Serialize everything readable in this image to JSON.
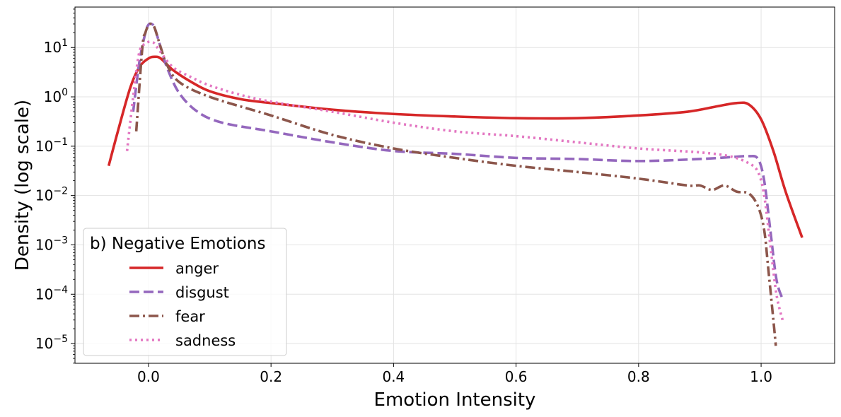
{
  "chart_data": {
    "type": "line",
    "title": "",
    "xlabel": "Emotion Intensity",
    "ylabel": "Density (log scale)",
    "xlim": [
      -0.12,
      1.12
    ],
    "ylim_log10": [
      -5.4,
      1.82
    ],
    "yscale": "log",
    "grid": true,
    "x_ticks": [
      0.0,
      0.2,
      0.4,
      0.6,
      0.8,
      1.0
    ],
    "x_tick_labels": [
      "0.0",
      "0.2",
      "0.4",
      "0.6",
      "0.8",
      "1.0"
    ],
    "y_ticks_log10": [
      -5,
      -4,
      -3,
      -2,
      -1,
      0,
      1
    ],
    "y_tick_labels": [
      {
        "base": "10",
        "exp": "−5"
      },
      {
        "base": "10",
        "exp": "−4"
      },
      {
        "base": "10",
        "exp": "−3"
      },
      {
        "base": "10",
        "exp": "−2"
      },
      {
        "base": "10",
        "exp": "−1"
      },
      {
        "base": "10",
        "exp": "0"
      },
      {
        "base": "10",
        "exp": "1"
      }
    ],
    "legend": {
      "title": "b) Negative Emotions",
      "position": "lower-left"
    },
    "series": [
      {
        "name": "anger",
        "color": "#d62728",
        "style": "solid",
        "x": [
          -0.065,
          -0.05,
          -0.03,
          -0.015,
          0.0,
          0.01,
          0.02,
          0.04,
          0.07,
          0.1,
          0.15,
          0.2,
          0.3,
          0.4,
          0.5,
          0.6,
          0.7,
          0.8,
          0.88,
          0.93,
          0.96,
          0.98,
          1.0,
          1.02,
          1.04,
          1.067
        ],
        "y": [
          0.04,
          0.2,
          1.5,
          4.0,
          6.0,
          6.5,
          6.0,
          3.5,
          2.0,
          1.3,
          0.9,
          0.75,
          0.55,
          0.45,
          0.4,
          0.37,
          0.37,
          0.42,
          0.5,
          0.65,
          0.75,
          0.7,
          0.35,
          0.08,
          0.012,
          0.0014
        ]
      },
      {
        "name": "disgust",
        "color": "#9467bd",
        "style": "dashed",
        "x": [
          -0.025,
          -0.015,
          -0.005,
          0.0,
          0.005,
          0.01,
          0.02,
          0.03,
          0.05,
          0.08,
          0.12,
          0.2,
          0.3,
          0.4,
          0.5,
          0.6,
          0.7,
          0.8,
          0.9,
          0.95,
          0.98,
          0.995,
          1.005,
          1.015,
          1.025,
          1.035
        ],
        "y": [
          0.5,
          5.0,
          20,
          29,
          30,
          25,
          10,
          4.0,
          1.2,
          0.5,
          0.3,
          0.2,
          0.12,
          0.08,
          0.07,
          0.058,
          0.055,
          0.05,
          0.055,
          0.06,
          0.063,
          0.055,
          0.02,
          0.002,
          0.0002,
          8e-05
        ]
      },
      {
        "name": "fear",
        "color": "#8c564b",
        "style": "dashdot",
        "x": [
          -0.02,
          -0.01,
          -0.005,
          0.0,
          0.005,
          0.01,
          0.02,
          0.03,
          0.05,
          0.1,
          0.2,
          0.3,
          0.4,
          0.5,
          0.6,
          0.7,
          0.8,
          0.88,
          0.9,
          0.92,
          0.94,
          0.96,
          0.98,
          0.995,
          1.005,
          1.012,
          1.02,
          1.024
        ],
        "y": [
          0.2,
          10,
          20,
          28,
          30,
          25,
          10,
          4.5,
          2.0,
          1.0,
          0.42,
          0.17,
          0.09,
          0.058,
          0.04,
          0.03,
          0.022,
          0.016,
          0.016,
          0.013,
          0.016,
          0.012,
          0.011,
          0.006,
          0.002,
          0.0003,
          3e-05,
          9e-06
        ]
      },
      {
        "name": "sadness",
        "color": "#e377c2",
        "style": "dotted",
        "x": [
          -0.035,
          -0.025,
          -0.015,
          -0.005,
          0.0,
          0.005,
          0.01,
          0.02,
          0.04,
          0.07,
          0.1,
          0.15,
          0.2,
          0.3,
          0.4,
          0.5,
          0.6,
          0.7,
          0.8,
          0.9,
          0.95,
          0.98,
          0.995,
          1.005,
          1.015,
          1.025,
          1.035
        ],
        "y": [
          0.08,
          1.0,
          8.0,
          12,
          13,
          13,
          12,
          8.0,
          4.0,
          2.5,
          1.7,
          1.1,
          0.8,
          0.5,
          0.3,
          0.2,
          0.16,
          0.12,
          0.09,
          0.075,
          0.062,
          0.045,
          0.03,
          0.01,
          0.001,
          0.0001,
          3e-05
        ]
      }
    ]
  }
}
